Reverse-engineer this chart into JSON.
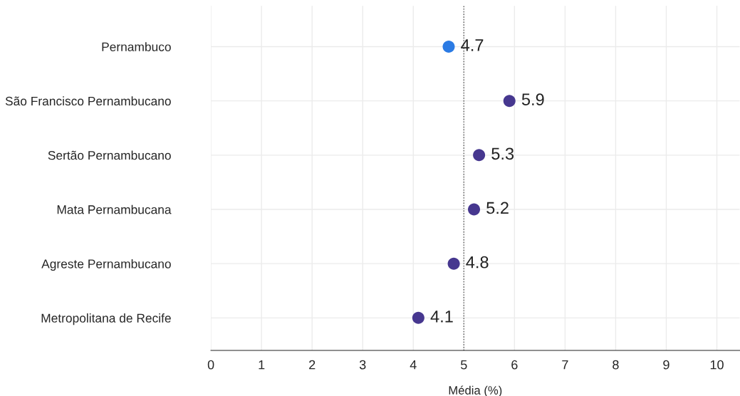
{
  "chart_data": {
    "type": "scatter",
    "orientation": "horizontal",
    "xlabel": "Média (%)",
    "categories": [
      "Pernambuco",
      "São Francisco Pernambucano",
      "Sertão Pernambucano",
      "Mata Pernambucana",
      "Agreste Pernambucano",
      "Metropolitana de Recife"
    ],
    "values": [
      4.7,
      5.9,
      5.3,
      5.2,
      4.8,
      4.1
    ],
    "colors": [
      "#2b7be4",
      "#46378f",
      "#46378f",
      "#46378f",
      "#46378f",
      "#46378f"
    ],
    "xlim": [
      0,
      10.45
    ],
    "xticks": [
      0,
      1,
      2,
      3,
      4,
      5,
      6,
      7,
      8,
      9,
      10
    ],
    "ref_lines": [
      {
        "axis": "x",
        "value": 5,
        "color": "#555555",
        "line_style": "dotted"
      }
    ],
    "data_labels": true,
    "grid": true,
    "marker": "circle"
  }
}
